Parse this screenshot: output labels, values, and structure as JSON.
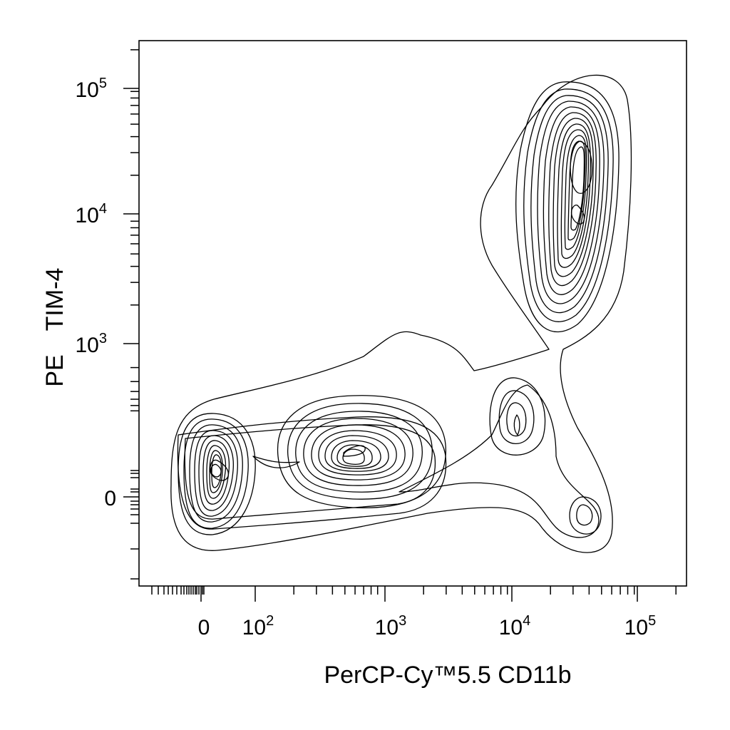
{
  "chart_data": {
    "type": "contour",
    "xlabel": "PerCP-Cy™5.5 CD11b",
    "ylabel_parts": [
      "PE",
      "TIM-4"
    ],
    "x_scale": "biexponential",
    "y_scale": "biexponential",
    "x_ticks": [
      {
        "label": "0",
        "base": "",
        "exp": ""
      },
      {
        "label": "",
        "base": "10",
        "exp": "2"
      },
      {
        "label": "",
        "base": "10",
        "exp": "3"
      },
      {
        "label": "",
        "base": "10",
        "exp": "4"
      },
      {
        "label": "",
        "base": "10",
        "exp": "5"
      }
    ],
    "y_ticks": [
      {
        "label": "0",
        "base": "",
        "exp": ""
      },
      {
        "label": "",
        "base": "10",
        "exp": "3"
      },
      {
        "label": "",
        "base": "10",
        "exp": "4"
      },
      {
        "label": "",
        "base": "10",
        "exp": "5"
      }
    ],
    "grid": false,
    "legend": "none",
    "populations": [
      {
        "x": 20,
        "y": 50,
        "levels": 14
      },
      {
        "x": 550,
        "y": 180,
        "levels": 11
      },
      {
        "x": 10500,
        "y": 330,
        "levels": 4
      },
      {
        "x": 36000,
        "y": -60,
        "levels": 2
      },
      {
        "x": 36000,
        "y": 22000,
        "levels": 16
      }
    ]
  }
}
